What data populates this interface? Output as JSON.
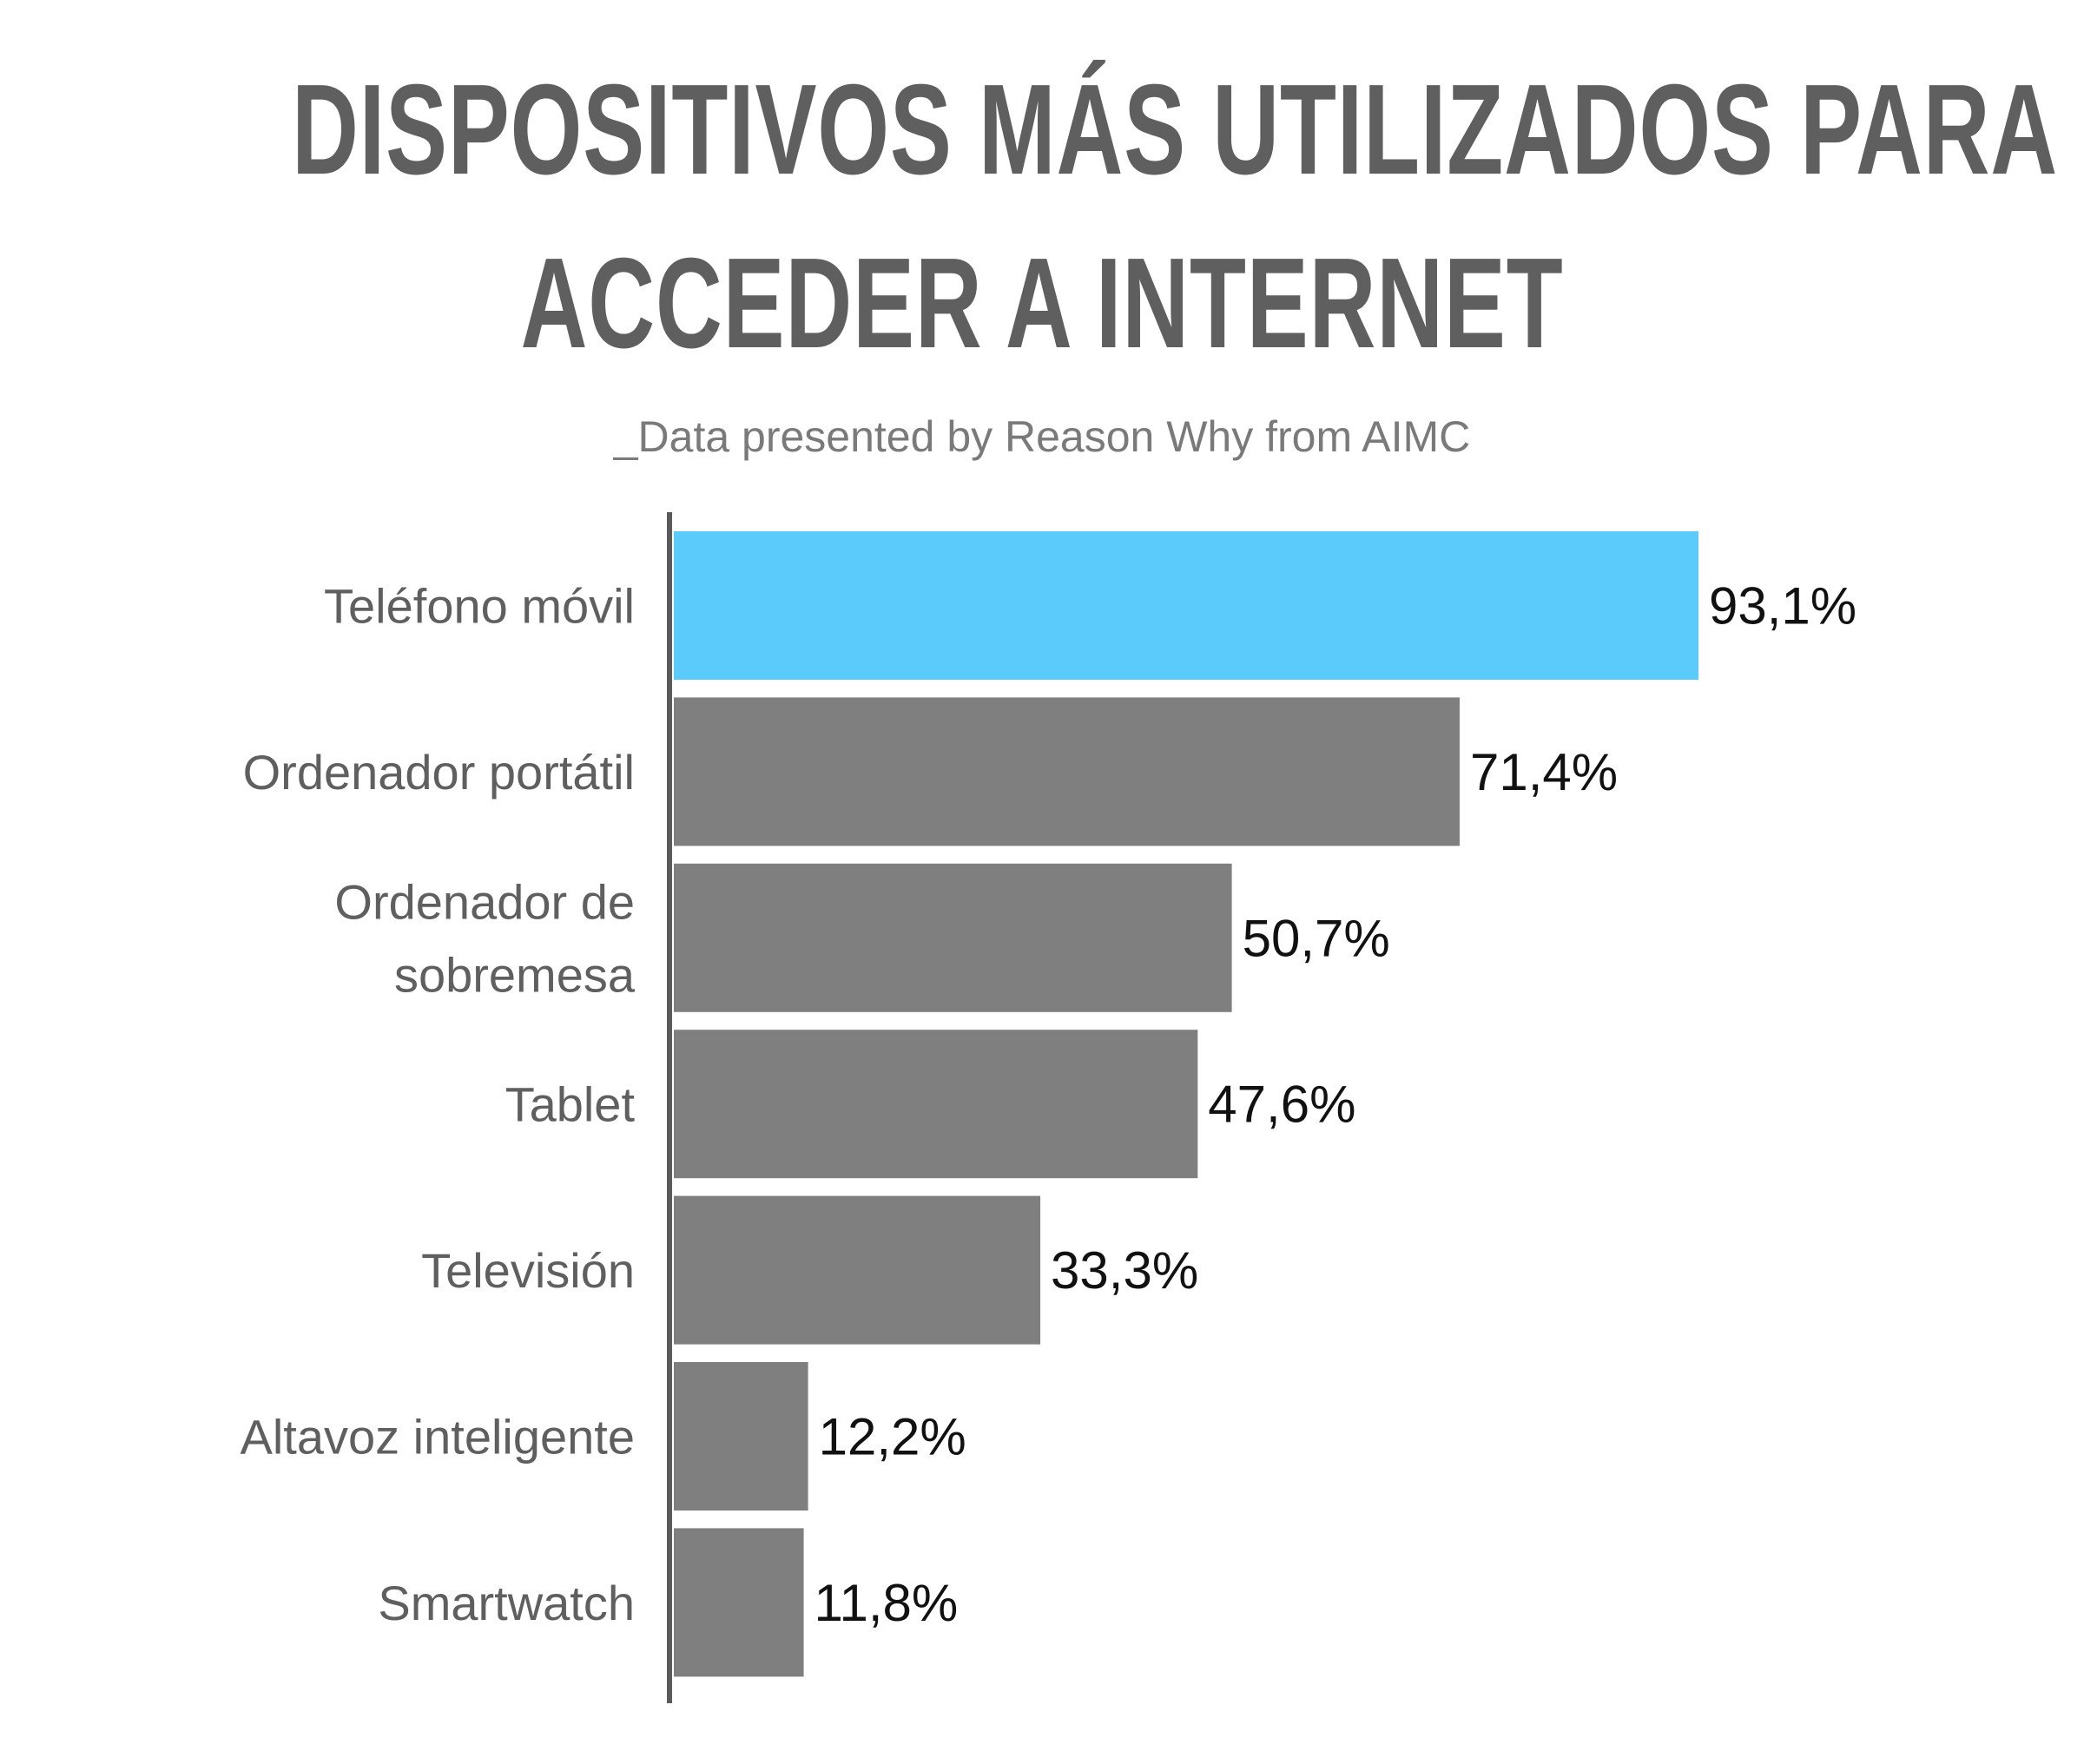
{
  "title_line_1": "DISPOSITIVOS MÁS UTILIZADOS PARA",
  "title_line_2": "ACCEDER A INTERNET",
  "subtitle": "_Data presented by Reason Why from AIMC",
  "colors": {
    "highlight": "#5bcbfc",
    "bar": "#7f7f7f",
    "axis": "#5a5a5a",
    "category_text": "#5f5f5f",
    "value_text": "#111111"
  },
  "chart_data": {
    "type": "bar",
    "orientation": "horizontal",
    "categories": [
      [
        "Teléfono móvil"
      ],
      [
        "Ordenador portátil"
      ],
      [
        "Ordenador de",
        "sobremesa"
      ],
      [
        "Tablet"
      ],
      [
        "Televisión"
      ],
      [
        "Altavoz inteligente"
      ],
      [
        "Smartwatch"
      ]
    ],
    "values": [
      93.1,
      71.4,
      50.7,
      47.6,
      33.3,
      12.2,
      11.8
    ],
    "value_labels": [
      "93,1%",
      "71,4%",
      "50,7%",
      "47,6%",
      "33,3%",
      "12,2%",
      "11,8%"
    ],
    "highlighted_index": 0,
    "xlim": [
      0,
      100
    ],
    "grid": false,
    "legend": "none"
  }
}
